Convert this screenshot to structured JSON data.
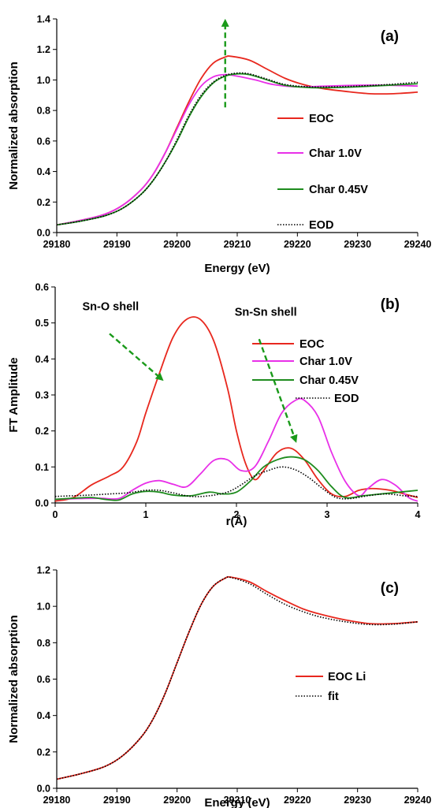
{
  "chart_data": [
    {
      "type": "line",
      "panel_label": "(a)",
      "xlabel": "Energy (eV)",
      "ylabel": "Normalized absorption",
      "xlim": [
        29180,
        29240
      ],
      "ylim": [
        0,
        1.4
      ],
      "xticks": [
        29180,
        29190,
        29200,
        29210,
        29220,
        29230,
        29240
      ],
      "yticks": [
        "0.0",
        "0.2",
        "0.4",
        "0.6",
        "0.8",
        "1.0",
        "1.2",
        "1.4"
      ],
      "legend_placement": "right",
      "annotations": [
        {
          "type": "dashed-arrow",
          "color": "#1a9a1a",
          "from": [
            29208,
            0.82
          ],
          "to": [
            29208,
            1.38
          ]
        }
      ],
      "series": [
        {
          "name": "EOC",
          "color": "#e8281e",
          "style": "solid",
          "x": [
            29180,
            29184,
            29188,
            29191,
            29194,
            29196,
            29198,
            29200,
            29202,
            29204,
            29206,
            29208,
            29209,
            29212,
            29215,
            29218,
            29221,
            29224,
            29228,
            29232,
            29236,
            29240
          ],
          "y": [
            0.05,
            0.08,
            0.12,
            0.18,
            0.28,
            0.38,
            0.52,
            0.69,
            0.86,
            1.01,
            1.11,
            1.15,
            1.155,
            1.13,
            1.07,
            1.01,
            0.97,
            0.945,
            0.925,
            0.91,
            0.91,
            0.92
          ]
        },
        {
          "name": "Char 1.0V",
          "color": "#e830e8",
          "style": "solid",
          "x": [
            29180,
            29184,
            29188,
            29191,
            29194,
            29196,
            29198,
            29200,
            29202,
            29204,
            29206,
            29208,
            29210,
            29213,
            29216,
            29220,
            29225,
            29230,
            29235,
            29240
          ],
          "y": [
            0.05,
            0.08,
            0.12,
            0.18,
            0.28,
            0.38,
            0.52,
            0.68,
            0.84,
            0.96,
            1.02,
            1.035,
            1.025,
            1.0,
            0.97,
            0.955,
            0.96,
            0.965,
            0.965,
            0.96
          ]
        },
        {
          "name": "Char 0.45V",
          "color": "#1e8c1e",
          "style": "solid",
          "x": [
            29180,
            29184,
            29188,
            29191,
            29194,
            29196,
            29198,
            29200,
            29202,
            29204,
            29206,
            29208,
            29210,
            29212,
            29215,
            29218,
            29222,
            29226,
            29230,
            29235,
            29240
          ],
          "y": [
            0.05,
            0.075,
            0.11,
            0.16,
            0.25,
            0.34,
            0.46,
            0.6,
            0.76,
            0.89,
            0.98,
            1.025,
            1.04,
            1.035,
            1.0,
            0.965,
            0.95,
            0.95,
            0.955,
            0.965,
            0.975
          ]
        },
        {
          "name": "EOD",
          "color": "#000000",
          "style": "dotted",
          "x": [
            29180,
            29184,
            29188,
            29191,
            29194,
            29196,
            29198,
            29200,
            29202,
            29204,
            29206,
            29208,
            29210,
            29212,
            29215,
            29218,
            29222,
            29226,
            29230,
            29235,
            29240
          ],
          "y": [
            0.05,
            0.075,
            0.11,
            0.16,
            0.25,
            0.34,
            0.46,
            0.61,
            0.77,
            0.9,
            0.985,
            1.03,
            1.045,
            1.04,
            1.005,
            0.97,
            0.955,
            0.955,
            0.96,
            0.97,
            0.985
          ]
        }
      ]
    },
    {
      "type": "line",
      "panel_label": "(b)",
      "xlabel": "r(Å)",
      "ylabel": "FT Amplitude",
      "xlim": [
        0,
        4
      ],
      "ylim": [
        0,
        0.6
      ],
      "xticks": [
        0,
        1,
        2,
        3,
        4
      ],
      "yticks": [
        "0.0",
        "0.1",
        "0.2",
        "0.3",
        "0.4",
        "0.5",
        "0.6"
      ],
      "legend_placement": "right",
      "annotations": [
        {
          "text": "Sn-O shell",
          "type": "label-with-dashed-arrow",
          "color": "#1a9a1a",
          "label_at": [
            0.3,
            0.535
          ],
          "from": [
            0.6,
            0.47
          ],
          "to": [
            1.17,
            0.345
          ]
        },
        {
          "text": "Sn-Sn shell",
          "type": "label-with-dashed-arrow",
          "color": "#1a9a1a",
          "label_at": [
            1.98,
            0.52
          ],
          "from": [
            2.25,
            0.455
          ],
          "to": [
            2.65,
            0.175
          ]
        }
      ],
      "series": [
        {
          "name": "EOC",
          "color": "#e8281e",
          "style": "solid",
          "x": [
            0,
            0.2,
            0.4,
            0.6,
            0.75,
            0.9,
            1.0,
            1.15,
            1.3,
            1.45,
            1.6,
            1.75,
            1.9,
            2.0,
            2.1,
            2.2,
            2.3,
            2.45,
            2.6,
            2.75,
            2.9,
            3.05,
            3.2,
            3.35,
            3.5,
            3.7,
            3.85,
            4.0
          ],
          "y": [
            0.005,
            0.015,
            0.05,
            0.075,
            0.1,
            0.17,
            0.25,
            0.36,
            0.46,
            0.51,
            0.51,
            0.45,
            0.32,
            0.2,
            0.11,
            0.065,
            0.09,
            0.14,
            0.152,
            0.12,
            0.065,
            0.025,
            0.018,
            0.035,
            0.04,
            0.035,
            0.025,
            0.015
          ]
        },
        {
          "name": "Char 1.0V",
          "color": "#e830e8",
          "style": "solid",
          "x": [
            0,
            0.25,
            0.5,
            0.7,
            0.85,
            1.0,
            1.15,
            1.3,
            1.45,
            1.6,
            1.75,
            1.9,
            2.05,
            2.2,
            2.35,
            2.5,
            2.65,
            2.75,
            2.9,
            3.05,
            3.2,
            3.35,
            3.45,
            3.6,
            3.75,
            3.9,
            4.0
          ],
          "y": [
            0.01,
            0.012,
            0.013,
            0.012,
            0.035,
            0.055,
            0.062,
            0.052,
            0.045,
            0.08,
            0.118,
            0.12,
            0.09,
            0.1,
            0.17,
            0.25,
            0.285,
            0.285,
            0.24,
            0.14,
            0.06,
            0.02,
            0.04,
            0.065,
            0.05,
            0.015,
            0.005
          ]
        },
        {
          "name": "Char 0.45V",
          "color": "#1e8c1e",
          "style": "solid",
          "x": [
            0,
            0.2,
            0.4,
            0.55,
            0.7,
            0.85,
            1.0,
            1.15,
            1.3,
            1.5,
            1.7,
            1.85,
            2.0,
            2.15,
            2.3,
            2.45,
            2.6,
            2.75,
            2.9,
            3.05,
            3.2,
            3.4,
            3.6,
            3.8,
            4.0
          ],
          "y": [
            0.01,
            0.013,
            0.015,
            0.01,
            0.008,
            0.025,
            0.032,
            0.03,
            0.022,
            0.02,
            0.03,
            0.025,
            0.03,
            0.06,
            0.1,
            0.12,
            0.128,
            0.12,
            0.09,
            0.045,
            0.015,
            0.02,
            0.025,
            0.03,
            0.035
          ]
        },
        {
          "name": "EOD",
          "color": "#000000",
          "style": "dotted",
          "x": [
            0,
            0.2,
            0.4,
            0.6,
            0.8,
            1.0,
            1.15,
            1.3,
            1.5,
            1.7,
            1.9,
            2.05,
            2.2,
            2.35,
            2.5,
            2.65,
            2.8,
            2.95,
            3.1,
            3.25,
            3.45,
            3.65,
            3.85,
            4.0
          ],
          "y": [
            0.018,
            0.02,
            0.022,
            0.025,
            0.028,
            0.035,
            0.035,
            0.028,
            0.018,
            0.02,
            0.03,
            0.05,
            0.075,
            0.09,
            0.1,
            0.092,
            0.07,
            0.04,
            0.015,
            0.012,
            0.02,
            0.025,
            0.02,
            0.018
          ]
        }
      ]
    },
    {
      "type": "line",
      "panel_label": "(c)",
      "xlabel": "Energy (eV)",
      "ylabel": "Normalized absorption",
      "xlim": [
        29180,
        29240
      ],
      "ylim": [
        0,
        1.2
      ],
      "xticks": [
        29180,
        29190,
        29200,
        29210,
        29220,
        29230,
        29240
      ],
      "yticks": [
        "0.0",
        "0.2",
        "0.4",
        "0.6",
        "0.8",
        "1.0",
        "1.2"
      ],
      "legend_placement": "bottom-right",
      "series": [
        {
          "name": "EOC Li",
          "color": "#e8281e",
          "style": "solid",
          "x": [
            29180,
            29184,
            29188,
            29191,
            29194,
            29196,
            29198,
            29200,
            29202,
            29204,
            29206,
            29208,
            29209,
            29212,
            29215,
            29218,
            29221,
            29224,
            29228,
            29232,
            29236,
            29240
          ],
          "y": [
            0.05,
            0.08,
            0.12,
            0.18,
            0.28,
            0.38,
            0.52,
            0.69,
            0.86,
            1.01,
            1.11,
            1.155,
            1.16,
            1.135,
            1.08,
            1.03,
            0.985,
            0.955,
            0.925,
            0.905,
            0.905,
            0.915
          ]
        },
        {
          "name": "fit",
          "color": "#000000",
          "style": "dotted",
          "x": [
            29180,
            29184,
            29188,
            29191,
            29194,
            29196,
            29198,
            29200,
            29202,
            29204,
            29206,
            29208,
            29209,
            29212,
            29215,
            29218,
            29221,
            29224,
            29228,
            29232,
            29236,
            29240
          ],
          "y": [
            0.05,
            0.08,
            0.12,
            0.18,
            0.28,
            0.38,
            0.52,
            0.69,
            0.86,
            1.01,
            1.11,
            1.155,
            1.158,
            1.125,
            1.065,
            1.01,
            0.97,
            0.94,
            0.915,
            0.9,
            0.902,
            0.915
          ]
        }
      ]
    }
  ]
}
